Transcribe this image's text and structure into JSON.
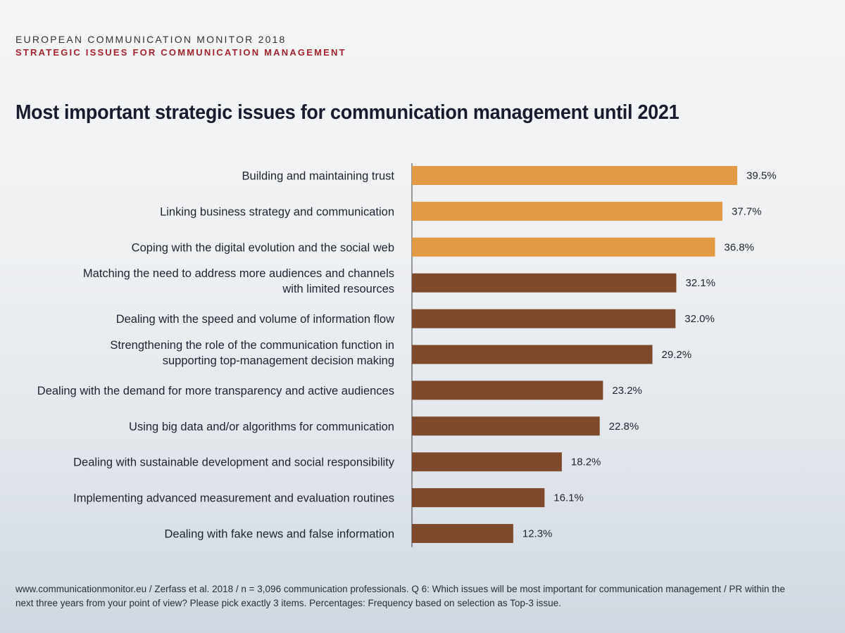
{
  "header": {
    "line1": "EUROPEAN COMMUNICATION MONITOR 2018",
    "line2": "STRATEGIC ISSUES FOR COMMUNICATION MANAGEMENT"
  },
  "footer": {
    "text": "www.communicationmonitor.eu / Zerfass et al. 2018 / n = 3,096 communication professionals. Q 6: Which issues will be most important for communication management / PR within the next three years from your point of view? Please pick exactly 3 items. Percentages: Frequency based on selection as Top-3 issue."
  },
  "colors": {
    "top_bars": "#e39a45",
    "other_bars": "#7e4a2b",
    "axis": "#3a3a3a"
  },
  "chart_data": {
    "type": "bar",
    "orientation": "horizontal",
    "title": "Most important strategic issues for communication management until 2021",
    "categories": [
      [
        "Building and maintaining trust"
      ],
      [
        "Linking business strategy and communication"
      ],
      [
        "Coping with the digital evolution and the social web"
      ],
      [
        "Matching the need to address more audiences and channels",
        "with limited resources"
      ],
      [
        "Dealing with the speed and volume of information flow"
      ],
      [
        "Strengthening the role of the communication function in",
        "supporting top-management decision making"
      ],
      [
        "Dealing with the demand for more transparency and active audiences"
      ],
      [
        "Using big data and/or algorithms for communication"
      ],
      [
        "Dealing with sustainable development and social responsibility"
      ],
      [
        "Implementing advanced measurement and evaluation routines"
      ],
      [
        "Dealing with fake news and false information"
      ]
    ],
    "values": [
      39.5,
      37.7,
      36.8,
      32.1,
      32.0,
      29.2,
      23.2,
      22.8,
      18.2,
      16.1,
      12.3
    ],
    "value_labels": [
      "39.5%",
      "37.7%",
      "36.8%",
      "32.1%",
      "32.0%",
      "29.2%",
      "23.2%",
      "22.8%",
      "18.2%",
      "16.1%",
      "12.3%"
    ],
    "highlighted_top": 3,
    "xlim": [
      0,
      40
    ],
    "grid": false,
    "legend": "none"
  }
}
